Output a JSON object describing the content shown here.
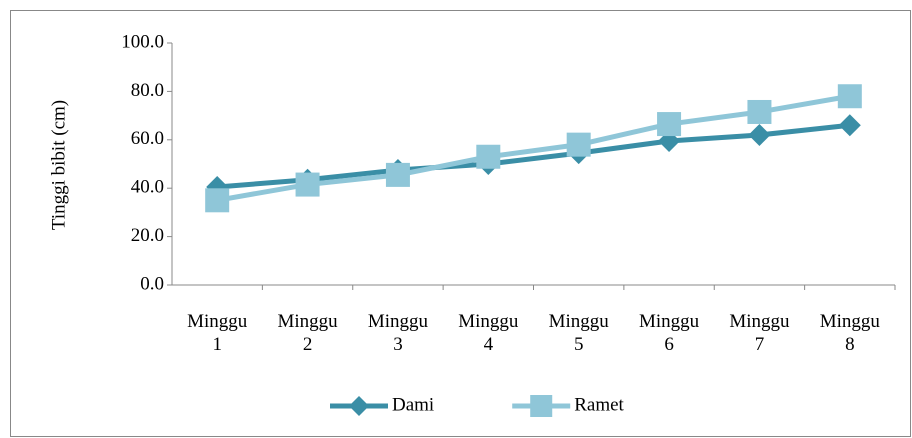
{
  "chart_data": {
    "type": "line",
    "y_label": "Tinggi bibit (cm)",
    "categories": [
      "Minggu 1",
      "Minggu 2",
      "Minggu 3",
      "Minggu 4",
      "Minggu 5",
      "Minggu 6",
      "Minggu 7",
      "Minggu 8"
    ],
    "series": [
      {
        "name": "Dami",
        "color": "#3a8ea6",
        "marker": "diamond",
        "values": [
          40.5,
          43.5,
          47.5,
          50,
          54.5,
          59.5,
          62,
          66
        ]
      },
      {
        "name": "Ramet",
        "color": "#8fc6d8",
        "marker": "square",
        "values": [
          35,
          41.5,
          45.5,
          53,
          58,
          66.5,
          71.5,
          78
        ]
      }
    ],
    "ylim": [
      0,
      100
    ],
    "yticks": [
      {
        "value": 0,
        "label": "0.0"
      },
      {
        "value": 20,
        "label": "20.0"
      },
      {
        "value": 40,
        "label": "40.0"
      },
      {
        "value": 60,
        "label": "60.0"
      },
      {
        "value": 80,
        "label": "80.0"
      },
      {
        "value": 100,
        "label": "100.0"
      }
    ],
    "grid": false,
    "legend": "bottom"
  }
}
